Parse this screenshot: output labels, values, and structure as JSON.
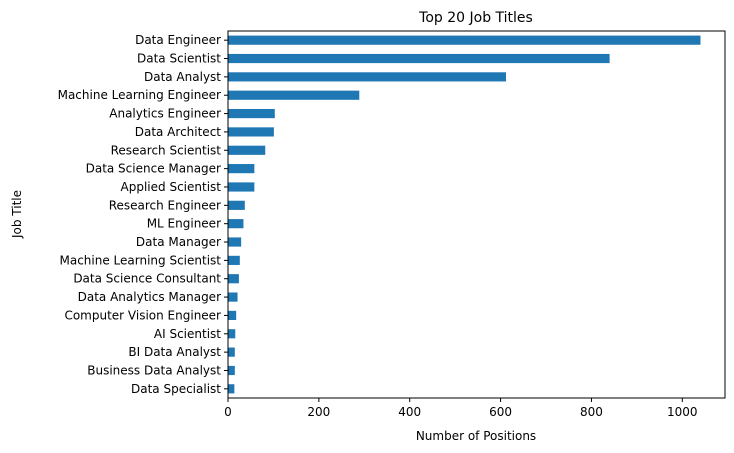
{
  "chart_data": {
    "type": "bar",
    "orientation": "horizontal",
    "title": "Top 20 Job Titles",
    "xlabel": "Number of Positions",
    "ylabel": "Job Title",
    "xlim": [
      0,
      1094
    ],
    "xticks": [
      0,
      200,
      400,
      600,
      800,
      1000
    ],
    "grid": false,
    "legend": "none",
    "bar_color": "#1f77b4",
    "categories": [
      "Data Engineer",
      "Data Scientist",
      "Data Analyst",
      "Machine Learning Engineer",
      "Analytics Engineer",
      "Data Architect",
      "Research Scientist",
      "Data Science Manager",
      "Applied Scientist",
      "Research Engineer",
      "ML Engineer",
      "Data Manager",
      "Machine Learning Scientist",
      "Data Science Consultant",
      "Data Analytics Manager",
      "Computer Vision Engineer",
      "AI Scientist",
      "BI Data Analyst",
      "Business Data Analyst",
      "Data Specialist"
    ],
    "values": [
      1040,
      840,
      612,
      289,
      103,
      101,
      82,
      58,
      58,
      37,
      34,
      29,
      26,
      24,
      21,
      18,
      16,
      15,
      15,
      14
    ]
  }
}
